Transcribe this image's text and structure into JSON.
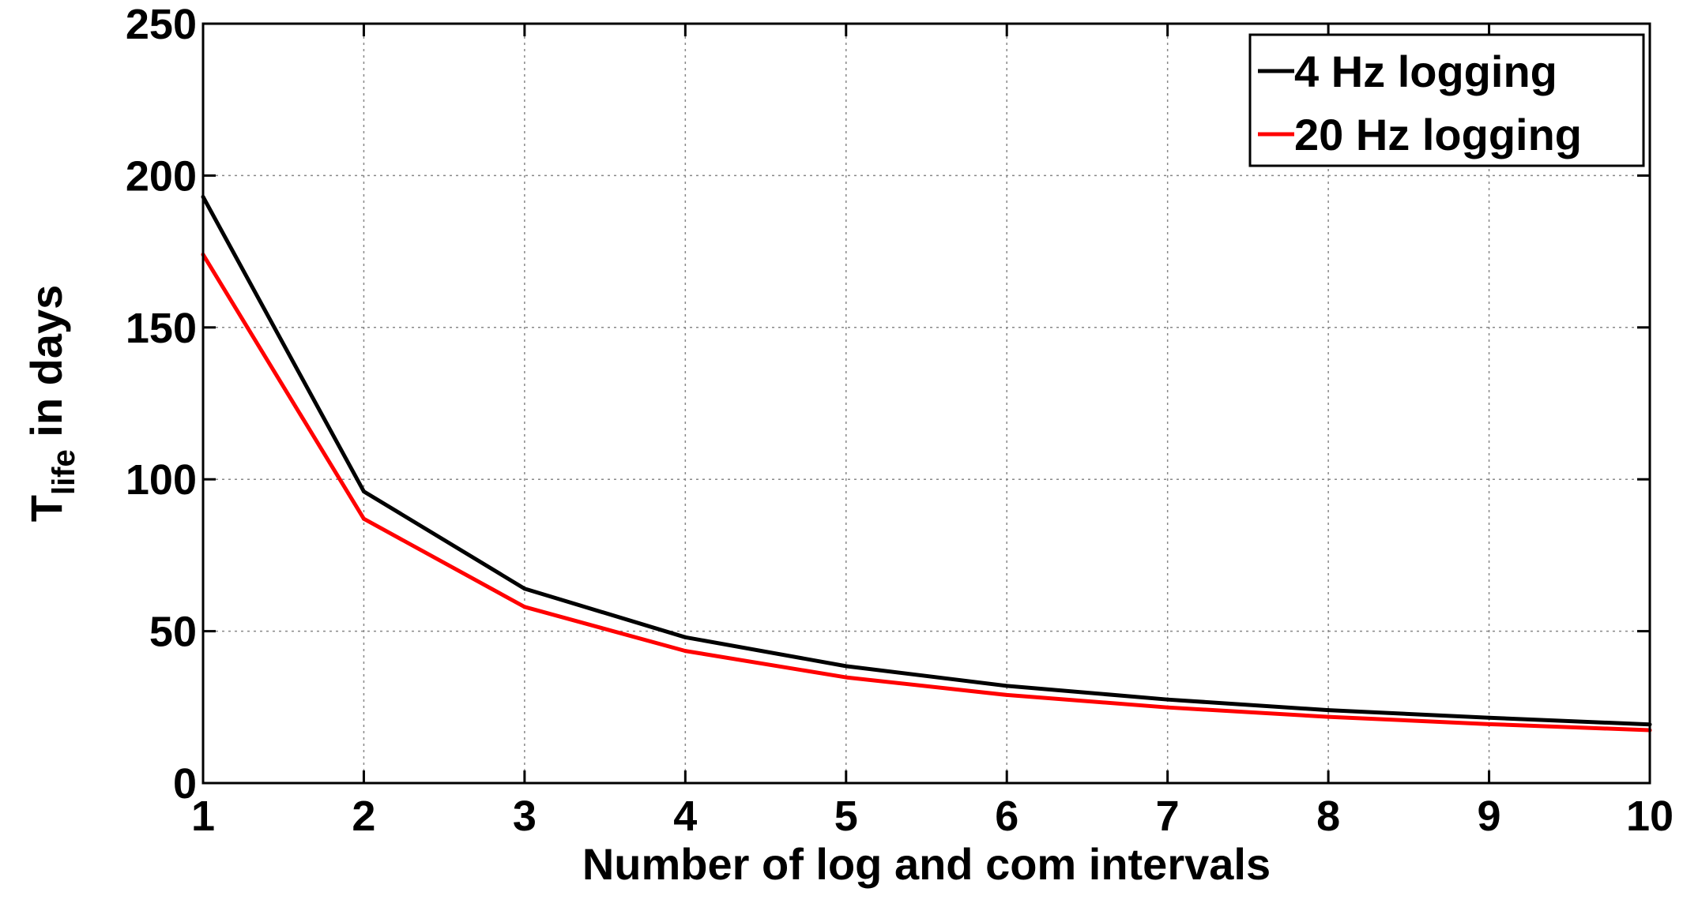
{
  "chart_data": {
    "type": "line",
    "title": "",
    "xlabel": "Number of log and com intervals",
    "ylabel": {
      "main": "T",
      "subscript": "life",
      "suffix": " in days"
    },
    "x": [
      1,
      2,
      3,
      4,
      5,
      6,
      7,
      8,
      9,
      10
    ],
    "xlim": [
      1,
      10
    ],
    "ylim": [
      0,
      250
    ],
    "xticks": [
      "1",
      "2",
      "3",
      "4",
      "5",
      "6",
      "7",
      "8",
      "9",
      "10"
    ],
    "yticks": [
      "0",
      "50",
      "100",
      "150",
      "200",
      "250"
    ],
    "xtick_values": [
      1,
      2,
      3,
      4,
      5,
      6,
      7,
      8,
      9,
      10
    ],
    "ytick_values": [
      0,
      50,
      100,
      150,
      200,
      250
    ],
    "grid": true,
    "legend_position": "top-right",
    "series": [
      {
        "name": "4 Hz logging",
        "color": "#000000",
        "values": [
          193,
          96,
          64,
          48,
          38.5,
          32,
          27.5,
          24,
          21.5,
          19.3
        ]
      },
      {
        "name": "20 Hz logging",
        "color": "#ff0000",
        "values": [
          174,
          87,
          58,
          43.5,
          34.8,
          29,
          24.9,
          21.8,
          19.4,
          17.4
        ]
      }
    ]
  }
}
